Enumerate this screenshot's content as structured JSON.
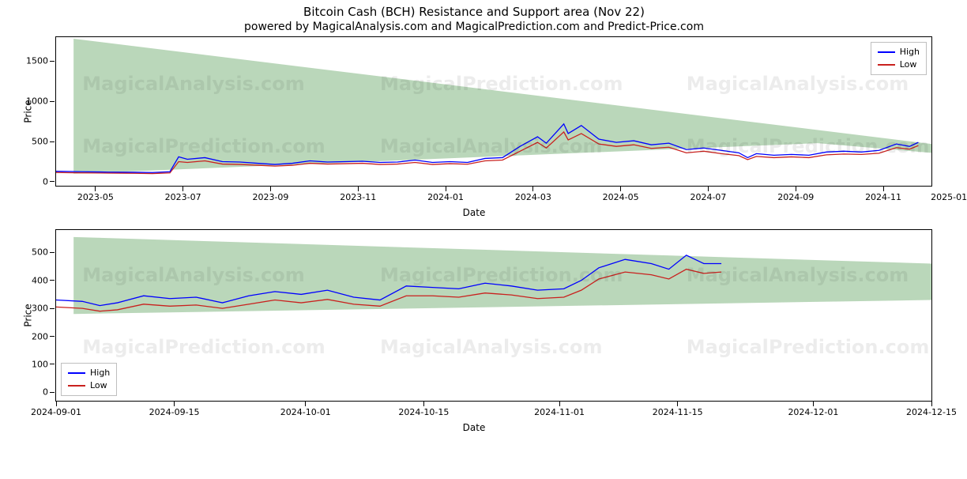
{
  "title": "Bitcoin Cash (BCH) Resistance and Support area (Nov 22)",
  "subtitle": "powered by MagicalAnalysis.com and MagicalPrediction.com and Predict-Price.com",
  "watermarks": [
    "MagicalAnalysis.com",
    "MagicalPrediction.com"
  ],
  "legend": {
    "high": {
      "label": "High",
      "color": "#0000ff"
    },
    "low": {
      "label": "Low",
      "color": "#c9211e"
    }
  },
  "support_area_color": "#9cc69c",
  "support_area_opacity": 0.7,
  "background_color": "#ffffff",
  "line_width": 1.3,
  "panel_top": {
    "type": "line",
    "ylabel": "Price",
    "xlabel": "Date",
    "ylim": [
      -50,
      1800
    ],
    "yticks": [
      0,
      500,
      1000,
      1500
    ],
    "xticks": [
      {
        "t": 0.045,
        "label": "2023-05"
      },
      {
        "t": 0.145,
        "label": "2023-07"
      },
      {
        "t": 0.245,
        "label": "2023-09"
      },
      {
        "t": 0.345,
        "label": "2023-11"
      },
      {
        "t": 0.445,
        "label": "2024-01"
      },
      {
        "t": 0.545,
        "label": "2024-03"
      },
      {
        "t": 0.645,
        "label": "2024-05"
      },
      {
        "t": 0.745,
        "label": "2024-07"
      },
      {
        "t": 0.845,
        "label": "2024-09"
      },
      {
        "t": 0.945,
        "label": "2024-11"
      },
      {
        "t": 1.02,
        "label": "2025-01"
      }
    ],
    "support_upper": [
      {
        "t": 0.02,
        "v": 1780
      },
      {
        "t": 1.0,
        "v": 470
      }
    ],
    "support_lower": [
      {
        "t": 0.02,
        "v": 100
      },
      {
        "t": 0.87,
        "v": 480
      },
      {
        "t": 1.0,
        "v": 360
      }
    ],
    "high": [
      {
        "t": 0.0,
        "v": 130
      },
      {
        "t": 0.03,
        "v": 125
      },
      {
        "t": 0.06,
        "v": 120
      },
      {
        "t": 0.09,
        "v": 118
      },
      {
        "t": 0.11,
        "v": 115
      },
      {
        "t": 0.13,
        "v": 125
      },
      {
        "t": 0.14,
        "v": 310
      },
      {
        "t": 0.15,
        "v": 280
      },
      {
        "t": 0.17,
        "v": 300
      },
      {
        "t": 0.19,
        "v": 250
      },
      {
        "t": 0.21,
        "v": 245
      },
      {
        "t": 0.23,
        "v": 230
      },
      {
        "t": 0.25,
        "v": 215
      },
      {
        "t": 0.27,
        "v": 230
      },
      {
        "t": 0.29,
        "v": 260
      },
      {
        "t": 0.31,
        "v": 245
      },
      {
        "t": 0.33,
        "v": 250
      },
      {
        "t": 0.35,
        "v": 255
      },
      {
        "t": 0.37,
        "v": 240
      },
      {
        "t": 0.39,
        "v": 245
      },
      {
        "t": 0.41,
        "v": 270
      },
      {
        "t": 0.43,
        "v": 240
      },
      {
        "t": 0.45,
        "v": 250
      },
      {
        "t": 0.47,
        "v": 240
      },
      {
        "t": 0.49,
        "v": 290
      },
      {
        "t": 0.51,
        "v": 300
      },
      {
        "t": 0.53,
        "v": 440
      },
      {
        "t": 0.55,
        "v": 560
      },
      {
        "t": 0.56,
        "v": 480
      },
      {
        "t": 0.58,
        "v": 720
      },
      {
        "t": 0.585,
        "v": 600
      },
      {
        "t": 0.6,
        "v": 700
      },
      {
        "t": 0.62,
        "v": 530
      },
      {
        "t": 0.64,
        "v": 490
      },
      {
        "t": 0.66,
        "v": 510
      },
      {
        "t": 0.68,
        "v": 460
      },
      {
        "t": 0.7,
        "v": 480
      },
      {
        "t": 0.72,
        "v": 400
      },
      {
        "t": 0.74,
        "v": 420
      },
      {
        "t": 0.76,
        "v": 390
      },
      {
        "t": 0.78,
        "v": 360
      },
      {
        "t": 0.79,
        "v": 300
      },
      {
        "t": 0.8,
        "v": 350
      },
      {
        "t": 0.82,
        "v": 330
      },
      {
        "t": 0.84,
        "v": 340
      },
      {
        "t": 0.86,
        "v": 330
      },
      {
        "t": 0.88,
        "v": 370
      },
      {
        "t": 0.9,
        "v": 380
      },
      {
        "t": 0.92,
        "v": 370
      },
      {
        "t": 0.94,
        "v": 390
      },
      {
        "t": 0.96,
        "v": 470
      },
      {
        "t": 0.975,
        "v": 440
      },
      {
        "t": 0.985,
        "v": 490
      }
    ],
    "low": [
      {
        "t": 0.0,
        "v": 115
      },
      {
        "t": 0.03,
        "v": 110
      },
      {
        "t": 0.06,
        "v": 108
      },
      {
        "t": 0.09,
        "v": 105
      },
      {
        "t": 0.11,
        "v": 102
      },
      {
        "t": 0.13,
        "v": 110
      },
      {
        "t": 0.14,
        "v": 250
      },
      {
        "t": 0.15,
        "v": 240
      },
      {
        "t": 0.17,
        "v": 260
      },
      {
        "t": 0.19,
        "v": 220
      },
      {
        "t": 0.21,
        "v": 215
      },
      {
        "t": 0.23,
        "v": 205
      },
      {
        "t": 0.25,
        "v": 195
      },
      {
        "t": 0.27,
        "v": 205
      },
      {
        "t": 0.29,
        "v": 230
      },
      {
        "t": 0.31,
        "v": 220
      },
      {
        "t": 0.33,
        "v": 225
      },
      {
        "t": 0.35,
        "v": 230
      },
      {
        "t": 0.37,
        "v": 215
      },
      {
        "t": 0.39,
        "v": 220
      },
      {
        "t": 0.41,
        "v": 240
      },
      {
        "t": 0.43,
        "v": 215
      },
      {
        "t": 0.45,
        "v": 225
      },
      {
        "t": 0.47,
        "v": 218
      },
      {
        "t": 0.49,
        "v": 260
      },
      {
        "t": 0.51,
        "v": 270
      },
      {
        "t": 0.53,
        "v": 380
      },
      {
        "t": 0.55,
        "v": 490
      },
      {
        "t": 0.56,
        "v": 420
      },
      {
        "t": 0.58,
        "v": 620
      },
      {
        "t": 0.585,
        "v": 520
      },
      {
        "t": 0.6,
        "v": 600
      },
      {
        "t": 0.62,
        "v": 470
      },
      {
        "t": 0.64,
        "v": 440
      },
      {
        "t": 0.66,
        "v": 460
      },
      {
        "t": 0.68,
        "v": 415
      },
      {
        "t": 0.7,
        "v": 430
      },
      {
        "t": 0.72,
        "v": 360
      },
      {
        "t": 0.74,
        "v": 380
      },
      {
        "t": 0.76,
        "v": 350
      },
      {
        "t": 0.78,
        "v": 325
      },
      {
        "t": 0.79,
        "v": 275
      },
      {
        "t": 0.8,
        "v": 315
      },
      {
        "t": 0.82,
        "v": 300
      },
      {
        "t": 0.84,
        "v": 310
      },
      {
        "t": 0.86,
        "v": 300
      },
      {
        "t": 0.88,
        "v": 335
      },
      {
        "t": 0.9,
        "v": 345
      },
      {
        "t": 0.92,
        "v": 340
      },
      {
        "t": 0.94,
        "v": 355
      },
      {
        "t": 0.96,
        "v": 425
      },
      {
        "t": 0.975,
        "v": 405
      },
      {
        "t": 0.985,
        "v": 450
      }
    ]
  },
  "panel_bottom": {
    "type": "line",
    "ylabel": "Price",
    "xlabel": "Date",
    "ylim": [
      -30,
      580
    ],
    "yticks": [
      0,
      100,
      200,
      300,
      400,
      500
    ],
    "xticks": [
      {
        "t": 0.0,
        "label": "2024-09-01"
      },
      {
        "t": 0.135,
        "label": "2024-09-15"
      },
      {
        "t": 0.285,
        "label": "2024-10-01"
      },
      {
        "t": 0.42,
        "label": "2024-10-15"
      },
      {
        "t": 0.575,
        "label": "2024-11-01"
      },
      {
        "t": 0.71,
        "label": "2024-11-15"
      },
      {
        "t": 0.865,
        "label": "2024-12-01"
      },
      {
        "t": 1.0,
        "label": "2024-12-15"
      }
    ],
    "support_upper": [
      {
        "t": 0.02,
        "v": 555
      },
      {
        "t": 1.0,
        "v": 460
      }
    ],
    "support_lower": [
      {
        "t": 0.02,
        "v": 280
      },
      {
        "t": 1.0,
        "v": 330
      }
    ],
    "high": [
      {
        "t": 0.0,
        "v": 330
      },
      {
        "t": 0.03,
        "v": 325
      },
      {
        "t": 0.05,
        "v": 310
      },
      {
        "t": 0.07,
        "v": 320
      },
      {
        "t": 0.1,
        "v": 345
      },
      {
        "t": 0.13,
        "v": 335
      },
      {
        "t": 0.16,
        "v": 340
      },
      {
        "t": 0.19,
        "v": 320
      },
      {
        "t": 0.22,
        "v": 345
      },
      {
        "t": 0.25,
        "v": 360
      },
      {
        "t": 0.28,
        "v": 350
      },
      {
        "t": 0.31,
        "v": 365
      },
      {
        "t": 0.34,
        "v": 340
      },
      {
        "t": 0.37,
        "v": 330
      },
      {
        "t": 0.4,
        "v": 380
      },
      {
        "t": 0.43,
        "v": 375
      },
      {
        "t": 0.46,
        "v": 370
      },
      {
        "t": 0.49,
        "v": 390
      },
      {
        "t": 0.52,
        "v": 380
      },
      {
        "t": 0.55,
        "v": 365
      },
      {
        "t": 0.58,
        "v": 370
      },
      {
        "t": 0.6,
        "v": 400
      },
      {
        "t": 0.62,
        "v": 445
      },
      {
        "t": 0.65,
        "v": 475
      },
      {
        "t": 0.68,
        "v": 460
      },
      {
        "t": 0.7,
        "v": 440
      },
      {
        "t": 0.72,
        "v": 490
      },
      {
        "t": 0.74,
        "v": 460
      },
      {
        "t": 0.76,
        "v": 460
      }
    ],
    "low": [
      {
        "t": 0.0,
        "v": 305
      },
      {
        "t": 0.03,
        "v": 300
      },
      {
        "t": 0.05,
        "v": 290
      },
      {
        "t": 0.07,
        "v": 295
      },
      {
        "t": 0.1,
        "v": 315
      },
      {
        "t": 0.13,
        "v": 308
      },
      {
        "t": 0.16,
        "v": 312
      },
      {
        "t": 0.19,
        "v": 300
      },
      {
        "t": 0.22,
        "v": 315
      },
      {
        "t": 0.25,
        "v": 330
      },
      {
        "t": 0.28,
        "v": 320
      },
      {
        "t": 0.31,
        "v": 332
      },
      {
        "t": 0.34,
        "v": 315
      },
      {
        "t": 0.37,
        "v": 308
      },
      {
        "t": 0.4,
        "v": 345
      },
      {
        "t": 0.43,
        "v": 345
      },
      {
        "t": 0.46,
        "v": 340
      },
      {
        "t": 0.49,
        "v": 355
      },
      {
        "t": 0.52,
        "v": 348
      },
      {
        "t": 0.55,
        "v": 335
      },
      {
        "t": 0.58,
        "v": 340
      },
      {
        "t": 0.6,
        "v": 365
      },
      {
        "t": 0.62,
        "v": 405
      },
      {
        "t": 0.65,
        "v": 430
      },
      {
        "t": 0.68,
        "v": 420
      },
      {
        "t": 0.7,
        "v": 405
      },
      {
        "t": 0.72,
        "v": 440
      },
      {
        "t": 0.74,
        "v": 425
      },
      {
        "t": 0.76,
        "v": 430
      }
    ]
  }
}
